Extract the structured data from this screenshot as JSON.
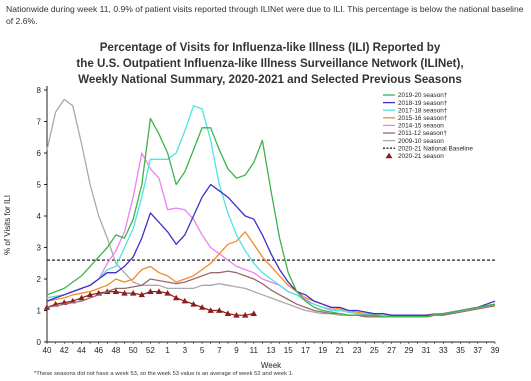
{
  "page": {
    "intro": "Nationwide during week 11, 0.9% of patient visits reported through ILINet were due to ILI. This percentage is below the national baseline of 2.6%.",
    "footnote": "*These seasons did not have a week 53, so the week 53 value is an average of week 52 and week 1."
  },
  "chart_data": {
    "type": "line",
    "title": "Percentage of Visits for Influenza-like Illness (ILI) Reported by the U.S. Outpatient Influenza-like Illness Surveillance Network (ILINet), Weekly National Summary, 2020-2021 and Selected Previous Seasons",
    "title_lines": [
      "Percentage of Visits for Influenza-like Illness (ILI) Reported by",
      "the U.S. Outpatient Influenza-like Illness Surveillance Network (ILINet),",
      "Weekly National Summary, 2020-2021 and Selected Previous Seasons"
    ],
    "xlabel": "Week",
    "ylabel": "% of Visits for ILI",
    "weeks": [
      40,
      41,
      42,
      43,
      44,
      45,
      46,
      47,
      48,
      49,
      50,
      51,
      52,
      53,
      1,
      2,
      3,
      4,
      5,
      6,
      7,
      8,
      9,
      10,
      11,
      12,
      13,
      14,
      15,
      16,
      17,
      18,
      19,
      20,
      21,
      22,
      23,
      24,
      25,
      26,
      27,
      28,
      29,
      30,
      31,
      32,
      33,
      34,
      35,
      36,
      37,
      38,
      39
    ],
    "x_tick_labels": [
      "40",
      "42",
      "44",
      "46",
      "48",
      "50",
      "52",
      "1",
      "3",
      "5",
      "7",
      "9",
      "11",
      "13",
      "15",
      "17",
      "19",
      "21",
      "23",
      "25",
      "27",
      "29",
      "31",
      "33",
      "35",
      "37",
      "39"
    ],
    "ylim": [
      0,
      8
    ],
    "y_ticks": [
      0,
      1,
      2,
      3,
      4,
      5,
      6,
      7,
      8
    ],
    "legend_position": "top-right",
    "grid": false,
    "baseline": {
      "name": "2020-21 National Baseline",
      "value": 2.6,
      "color": "#222222"
    },
    "series": [
      {
        "name": "2019-20 season†",
        "color": "#3cb44b",
        "values": [
          1.5,
          1.6,
          1.7,
          1.9,
          2.1,
          2.4,
          2.7,
          3.0,
          3.4,
          3.3,
          3.9,
          5.0,
          7.1,
          6.6,
          6.0,
          5.0,
          5.4,
          6.1,
          6.8,
          6.8,
          6.1,
          5.5,
          5.2,
          5.3,
          5.7,
          6.4,
          4.8,
          3.3,
          2.2,
          1.6,
          1.3,
          1.1,
          1.0,
          0.95,
          0.9,
          0.85,
          0.85,
          0.85,
          0.85,
          0.8,
          0.8,
          0.8,
          0.8,
          0.8,
          0.8,
          0.85,
          0.9,
          0.95,
          1.0,
          1.05,
          1.1,
          1.15,
          1.2
        ]
      },
      {
        "name": "2018-19 season†",
        "color": "#3f2fc7",
        "values": [
          1.3,
          1.4,
          1.5,
          1.6,
          1.7,
          1.8,
          2.0,
          2.2,
          2.2,
          2.4,
          2.7,
          3.3,
          4.1,
          3.8,
          3.5,
          3.1,
          3.4,
          4.0,
          4.6,
          5.0,
          4.8,
          4.6,
          4.3,
          4.0,
          3.9,
          3.4,
          2.8,
          2.3,
          1.9,
          1.6,
          1.5,
          1.3,
          1.2,
          1.1,
          1.1,
          1.0,
          1.0,
          0.95,
          0.9,
          0.9,
          0.85,
          0.85,
          0.85,
          0.85,
          0.85,
          0.85,
          0.9,
          0.95,
          1.0,
          1.05,
          1.1,
          1.2,
          1.3
        ]
      },
      {
        "name": "2017-18 season†",
        "color": "#4fe3e3",
        "values": [
          1.4,
          1.45,
          1.5,
          1.6,
          1.7,
          1.8,
          2.0,
          2.3,
          2.4,
          3.0,
          3.6,
          4.6,
          5.8,
          5.8,
          5.8,
          6.0,
          6.7,
          7.5,
          7.4,
          6.4,
          5.0,
          4.1,
          3.4,
          2.9,
          2.5,
          2.2,
          2.0,
          1.8,
          1.6,
          1.5,
          1.3,
          1.2,
          1.1,
          1.0,
          1.0,
          0.95,
          0.9,
          0.9,
          0.85,
          0.85,
          0.8,
          0.8,
          0.8,
          0.8,
          0.8,
          0.85,
          0.9,
          0.95,
          1.0,
          1.05,
          1.1,
          1.15,
          1.2
        ]
      },
      {
        "name": "2015-16 season†",
        "color": "#f28c28",
        "values": [
          1.3,
          1.35,
          1.4,
          1.5,
          1.55,
          1.6,
          1.7,
          1.8,
          2.0,
          1.9,
          2.0,
          2.3,
          2.4,
          2.2,
          2.1,
          1.9,
          2.0,
          2.1,
          2.3,
          2.5,
          2.8,
          3.1,
          3.2,
          3.5,
          3.1,
          2.7,
          2.4,
          2.1,
          1.8,
          1.6,
          1.4,
          1.3,
          1.2,
          1.1,
          1.05,
          1.0,
          0.95,
          0.9,
          0.9,
          0.85,
          0.85,
          0.85,
          0.85,
          0.85,
          0.85,
          0.9,
          0.9,
          0.95,
          1.0,
          1.05,
          1.1,
          1.15,
          1.2
        ]
      },
      {
        "name": "2014-15 season",
        "color": "#ee82ee",
        "values": [
          1.4,
          1.45,
          1.5,
          1.6,
          1.7,
          1.8,
          2.0,
          2.5,
          2.9,
          3.5,
          4.6,
          6.0,
          5.5,
          5.2,
          4.2,
          4.25,
          4.2,
          3.9,
          3.4,
          3.0,
          2.8,
          2.6,
          2.4,
          2.3,
          2.2,
          2.0,
          1.9,
          1.8,
          1.6,
          1.5,
          1.35,
          1.2,
          1.1,
          1.05,
          1.0,
          0.95,
          0.9,
          0.9,
          0.85,
          0.85,
          0.85,
          0.85,
          0.85,
          0.85,
          0.85,
          0.9,
          0.9,
          0.95,
          1.0,
          1.05,
          1.1,
          1.15,
          1.2
        ]
      },
      {
        "name": "2011-12 season†",
        "color": "#9a6b6b",
        "values": [
          1.1,
          1.15,
          1.2,
          1.25,
          1.3,
          1.4,
          1.5,
          1.6,
          1.7,
          1.7,
          1.75,
          1.8,
          2.0,
          1.95,
          1.9,
          1.85,
          1.9,
          2.0,
          2.1,
          2.2,
          2.2,
          2.25,
          2.2,
          2.1,
          2.0,
          1.85,
          1.65,
          1.5,
          1.35,
          1.2,
          1.1,
          1.0,
          0.95,
          0.9,
          0.9,
          0.85,
          0.85,
          0.8,
          0.8,
          0.8,
          0.8,
          0.8,
          0.8,
          0.8,
          0.8,
          0.85,
          0.85,
          0.9,
          0.95,
          1.0,
          1.05,
          1.1,
          1.15
        ]
      },
      {
        "name": "2009-10 season",
        "color": "#a9a9a9",
        "values": [
          6.1,
          7.3,
          7.7,
          7.5,
          6.3,
          5.0,
          4.0,
          3.3,
          2.5,
          2.2,
          1.9,
          1.8,
          1.8,
          1.8,
          1.7,
          1.7,
          1.7,
          1.7,
          1.8,
          1.8,
          1.85,
          1.8,
          1.75,
          1.7,
          1.6,
          1.5,
          1.4,
          1.3,
          1.2,
          1.1,
          1.0,
          0.95,
          0.9,
          0.9,
          0.85,
          0.85,
          0.85,
          0.85,
          0.85,
          0.85,
          0.85,
          0.85,
          0.85,
          0.85,
          0.85,
          0.9,
          0.9,
          0.95,
          1.0,
          1.05,
          1.1,
          1.15,
          1.2
        ]
      },
      {
        "name": "2020-21 season",
        "color": "#8b1c1c",
        "marker": "triangle",
        "values": [
          1.1,
          1.2,
          1.25,
          1.3,
          1.4,
          1.5,
          1.55,
          1.6,
          1.6,
          1.55,
          1.55,
          1.5,
          1.6,
          1.6,
          1.55,
          1.4,
          1.3,
          1.2,
          1.1,
          1.0,
          1.0,
          0.9,
          0.85,
          0.85,
          0.9
        ]
      }
    ]
  }
}
